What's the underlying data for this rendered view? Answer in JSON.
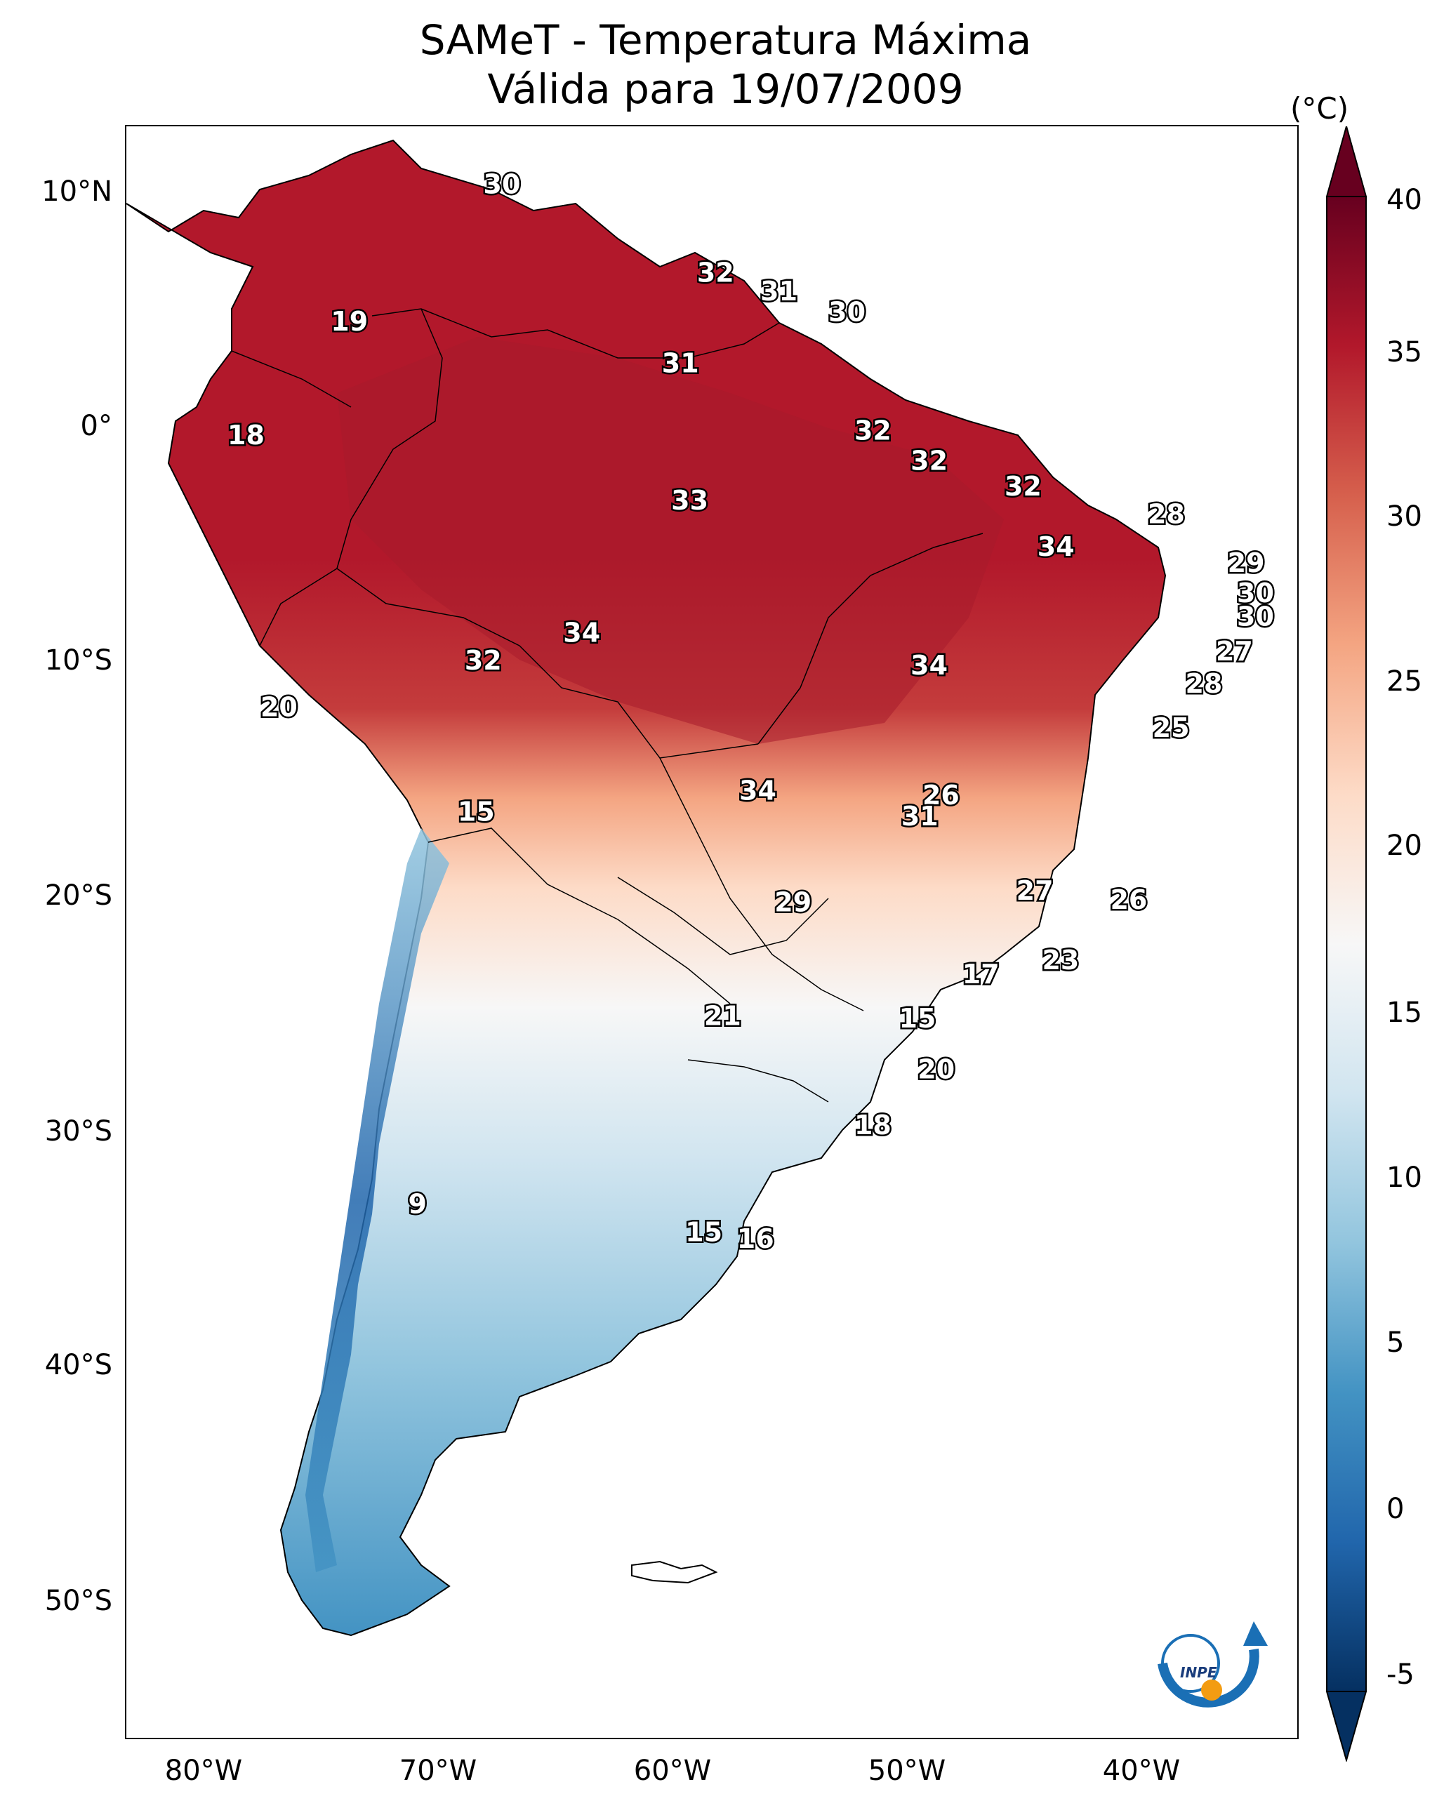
{
  "title": {
    "line1": "SAMeT - Temperatura Máxima",
    "line2": "Válida para 19/07/2009"
  },
  "colorbar": {
    "unit": "(°C)",
    "min": -5,
    "max": 40,
    "ticks": [
      "40",
      "35",
      "30",
      "25",
      "20",
      "15",
      "10",
      "5",
      "0",
      "-5"
    ],
    "colors": [
      "#053061",
      "#2166ac",
      "#4393c3",
      "#92c5de",
      "#d1e5f0",
      "#f7f7f7",
      "#fddbc7",
      "#f4a582",
      "#d6604d",
      "#b2182b",
      "#67001f"
    ]
  },
  "axes": {
    "lat_labels": [
      "10°N",
      "0°",
      "10°S",
      "20°S",
      "30°S",
      "40°S",
      "50°S"
    ],
    "lon_labels": [
      "80°W",
      "70°W",
      "60°W",
      "50°W",
      "40°W"
    ]
  },
  "map": {
    "extent": {
      "lon_min": -83,
      "lon_max": -33,
      "lat_min": -56.5,
      "lat_max": 13
    },
    "values": [
      {
        "text": "30",
        "lon": -67,
        "lat": 10.5
      },
      {
        "text": "32",
        "lon": -57.9,
        "lat": 6.7
      },
      {
        "text": "31",
        "lon": -55.2,
        "lat": 5.9
      },
      {
        "text": "30",
        "lon": -52.3,
        "lat": 5.0
      },
      {
        "text": "19",
        "lon": -73.5,
        "lat": 4.6
      },
      {
        "text": "31",
        "lon": -59.4,
        "lat": 2.8
      },
      {
        "text": "18",
        "lon": -77.9,
        "lat": -0.3
      },
      {
        "text": "32",
        "lon": -51.2,
        "lat": -0.1
      },
      {
        "text": "32",
        "lon": -48.8,
        "lat": -1.4
      },
      {
        "text": "32",
        "lon": -44.8,
        "lat": -2.5
      },
      {
        "text": "33",
        "lon": -59.0,
        "lat": -3.1
      },
      {
        "text": "28",
        "lon": -38.7,
        "lat": -3.7
      },
      {
        "text": "34",
        "lon": -43.4,
        "lat": -5.1
      },
      {
        "text": "29",
        "lon": -35.3,
        "lat": -5.8
      },
      {
        "text": "30",
        "lon": -34.9,
        "lat": -7.1
      },
      {
        "text": "30",
        "lon": -34.9,
        "lat": -8.1
      },
      {
        "text": "34",
        "lon": -63.6,
        "lat": -8.8
      },
      {
        "text": "27",
        "lon": -35.8,
        "lat": -9.6
      },
      {
        "text": "32",
        "lon": -67.8,
        "lat": -10.0
      },
      {
        "text": "34",
        "lon": -48.8,
        "lat": -10.2
      },
      {
        "text": "28",
        "lon": -37.1,
        "lat": -11.0
      },
      {
        "text": "20",
        "lon": -76.5,
        "lat": -12.0
      },
      {
        "text": "25",
        "lon": -38.5,
        "lat": -12.9
      },
      {
        "text": "34",
        "lon": -56.1,
        "lat": -15.6
      },
      {
        "text": "26",
        "lon": -48.3,
        "lat": -15.8
      },
      {
        "text": "15",
        "lon": -68.1,
        "lat": -16.5
      },
      {
        "text": "31",
        "lon": -49.2,
        "lat": -16.7
      },
      {
        "text": "27",
        "lon": -44.3,
        "lat": -19.9
      },
      {
        "text": "29",
        "lon": -54.6,
        "lat": -20.4
      },
      {
        "text": "26",
        "lon": -40.3,
        "lat": -20.3
      },
      {
        "text": "23",
        "lon": -43.2,
        "lat": -22.9
      },
      {
        "text": "17",
        "lon": -46.6,
        "lat": -23.5
      },
      {
        "text": "21",
        "lon": -57.6,
        "lat": -25.3
      },
      {
        "text": "15",
        "lon": -49.3,
        "lat": -25.4
      },
      {
        "text": "20",
        "lon": -48.5,
        "lat": -27.6
      },
      {
        "text": "18",
        "lon": -51.2,
        "lat": -30.0
      },
      {
        "text": "9",
        "lon": -70.6,
        "lat": -33.4
      },
      {
        "text": "15",
        "lon": -58.4,
        "lat": -34.6
      },
      {
        "text": "16",
        "lon": -56.2,
        "lat": -34.9
      }
    ]
  },
  "logo": {
    "text": "INPE"
  }
}
